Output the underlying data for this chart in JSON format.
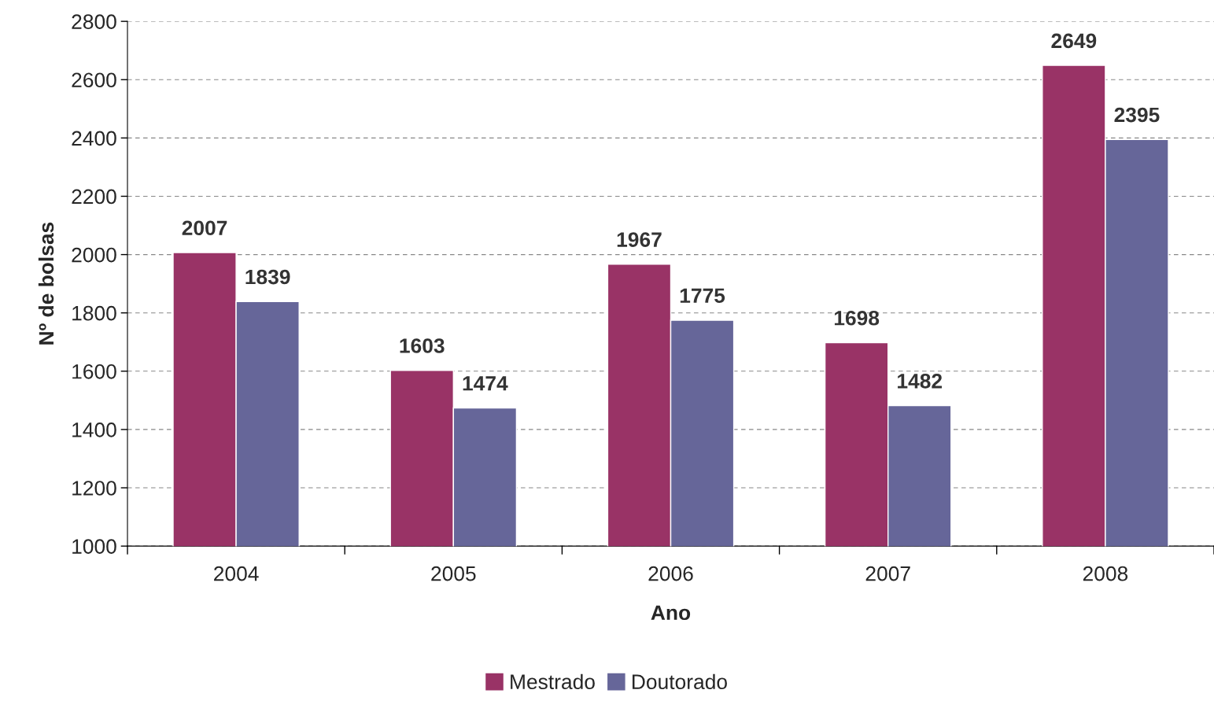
{
  "chart_data": {
    "type": "bar",
    "xlabel": "Ano",
    "ylabel": "Nº de bolsas",
    "categories": [
      "2004",
      "2005",
      "2006",
      "2007",
      "2008"
    ],
    "series": [
      {
        "name": "Mestrado",
        "color": "#993366",
        "values": [
          2007,
          1603,
          1967,
          1698,
          2649
        ]
      },
      {
        "name": "Doutorado",
        "color": "#666699",
        "values": [
          1839,
          1474,
          1775,
          1482,
          2395
        ]
      }
    ],
    "ylim": [
      1000,
      2800
    ],
    "yticks": [
      1000,
      1200,
      1400,
      1600,
      1800,
      2000,
      2200,
      2400,
      2600,
      2800
    ],
    "grid": "y",
    "legend": "bottom",
    "data_labels": true
  }
}
